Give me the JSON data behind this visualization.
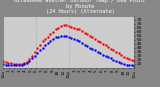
{
  "title": "Milwaukee Weather Outdoor Temp / Dew Point\nby Minute\n(24 Hours) (Alternate)",
  "bg_color": "#888888",
  "plot_bg_color": "#cccccc",
  "title_bg_color": "#555555",
  "ylim": [
    15,
    80
  ],
  "yticks": [
    20,
    25,
    30,
    35,
    40,
    45,
    50,
    55,
    60,
    65,
    70,
    75
  ],
  "vlines": [
    0.25,
    0.5
  ],
  "temp_color": "#ff0000",
  "dew_color": "#0000ff",
  "temp_x": [
    0.0,
    0.02,
    0.04,
    0.06,
    0.08,
    0.1,
    0.12,
    0.14,
    0.16,
    0.18,
    0.2,
    0.22,
    0.24,
    0.26,
    0.28,
    0.3,
    0.32,
    0.34,
    0.36,
    0.38,
    0.4,
    0.42,
    0.44,
    0.46,
    0.48,
    0.5,
    0.52,
    0.54,
    0.56,
    0.58,
    0.6,
    0.62,
    0.64,
    0.66,
    0.68,
    0.7,
    0.72,
    0.74,
    0.76,
    0.78,
    0.8,
    0.82,
    0.84,
    0.86,
    0.88,
    0.9,
    0.92,
    0.94,
    0.96,
    0.98,
    1.0
  ],
  "temp_y": [
    23,
    22,
    21,
    21,
    20,
    20,
    20,
    20,
    21,
    22,
    26,
    30,
    35,
    40,
    44,
    48,
    51,
    54,
    57,
    60,
    63,
    65,
    67,
    68,
    68,
    67,
    66,
    65,
    64,
    63,
    61,
    59,
    57,
    55,
    53,
    51,
    49,
    47,
    45,
    43,
    41,
    39,
    37,
    35,
    33,
    31,
    29,
    27,
    26,
    25,
    24
  ],
  "dew_x": [
    0.0,
    0.02,
    0.04,
    0.06,
    0.08,
    0.1,
    0.12,
    0.14,
    0.16,
    0.18,
    0.2,
    0.22,
    0.24,
    0.26,
    0.28,
    0.3,
    0.32,
    0.34,
    0.36,
    0.38,
    0.4,
    0.42,
    0.44,
    0.46,
    0.48,
    0.5,
    0.52,
    0.54,
    0.56,
    0.58,
    0.6,
    0.62,
    0.64,
    0.66,
    0.68,
    0.7,
    0.72,
    0.74,
    0.76,
    0.78,
    0.8,
    0.82,
    0.84,
    0.86,
    0.88,
    0.9,
    0.92,
    0.94,
    0.96,
    0.98,
    1.0
  ],
  "dew_y": [
    20,
    19,
    18,
    18,
    18,
    18,
    18,
    19,
    20,
    21,
    24,
    27,
    30,
    34,
    37,
    40,
    43,
    46,
    49,
    51,
    53,
    54,
    55,
    55,
    55,
    54,
    52,
    51,
    50,
    48,
    46,
    44,
    42,
    40,
    38,
    37,
    35,
    33,
    31,
    30,
    28,
    27,
    25,
    23,
    22,
    21,
    20,
    19,
    18,
    18,
    17
  ],
  "title_fontsize": 3.8,
  "tick_fontsize": 3.2,
  "title_color": "#ffffff",
  "tick_color": "#000000",
  "xtick_labels": [
    "12a",
    "1",
    "2",
    "3",
    "4",
    "5",
    "6",
    "7",
    "8",
    "9",
    "10",
    "11",
    "12p",
    "1",
    "2",
    "3",
    "4",
    "5",
    "6",
    "7",
    "8",
    "9",
    "10",
    "11",
    "12a"
  ],
  "xtick_pos": [
    0.0,
    0.0417,
    0.0833,
    0.125,
    0.1667,
    0.2083,
    0.25,
    0.2917,
    0.3333,
    0.375,
    0.4167,
    0.4583,
    0.5,
    0.5417,
    0.5833,
    0.625,
    0.6667,
    0.7083,
    0.75,
    0.7917,
    0.8333,
    0.875,
    0.9167,
    0.9583,
    1.0
  ]
}
